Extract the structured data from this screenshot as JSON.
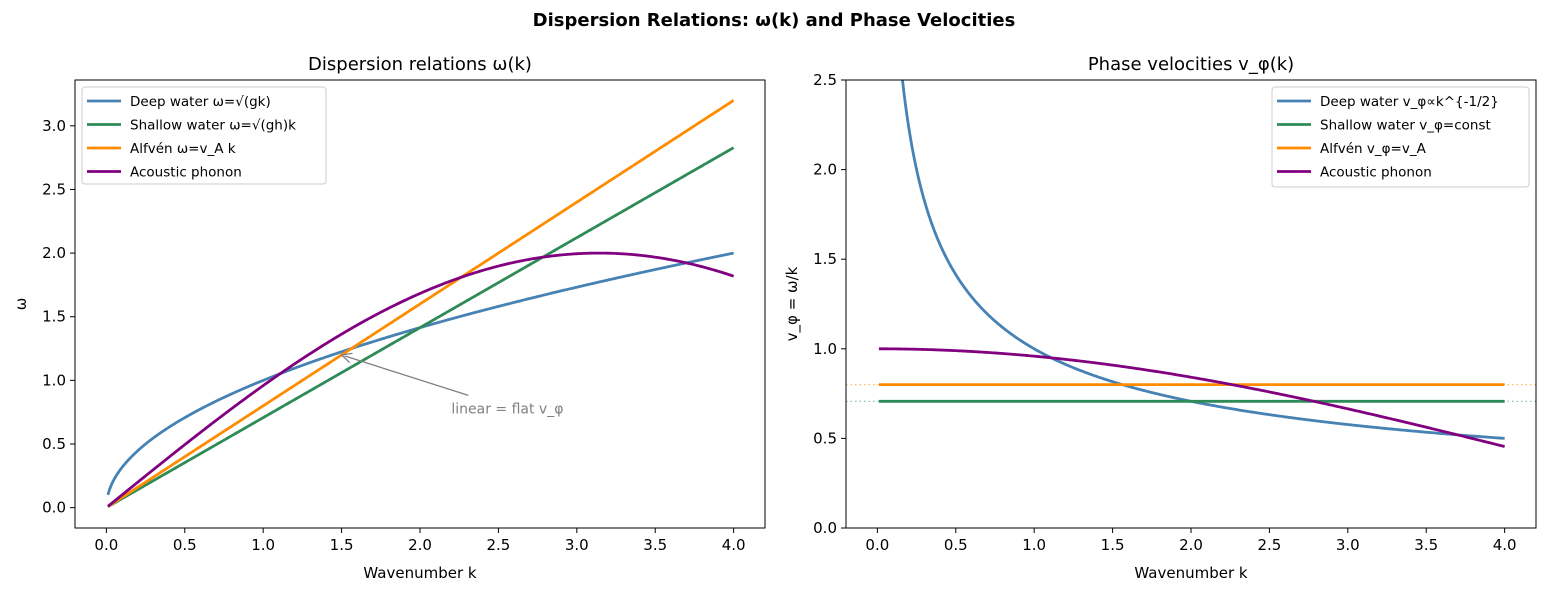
{
  "figure": {
    "suptitle": "Dispersion Relations: ω(k) and Phase Velocities"
  },
  "colors": {
    "deep": "#4682b4",
    "shallow": "#2e8b57",
    "alfven": "#ff8c00",
    "acoustic": "#800080",
    "annotation": "#808080"
  },
  "chart_data": [
    {
      "type": "line",
      "title": "Dispersion relations  ω(k)",
      "xlabel": "Wavenumber k",
      "ylabel": "ω",
      "xlim": [
        -0.2,
        4.2
      ],
      "ylim": [
        -0.16,
        3.36
      ],
      "xticks": [
        "0.0",
        "0.5",
        "1.0",
        "1.5",
        "2.0",
        "2.5",
        "3.0",
        "3.5",
        "4.0"
      ],
      "yticks": [
        "0.0",
        "0.5",
        "1.0",
        "1.5",
        "2.0",
        "2.5",
        "3.0"
      ],
      "legend_position": "upper-left",
      "series": [
        {
          "name": "Deep water  ω=√(gk)",
          "color_key": "deep",
          "formula": "sqrt(k)",
          "x_range": [
            0.01,
            4.0
          ]
        },
        {
          "name": "Shallow water  ω=√(gh)k",
          "color_key": "shallow",
          "formula": "0.7071*k",
          "x_range": [
            0.01,
            4.0
          ]
        },
        {
          "name": "Alfvén  ω=v_A k",
          "color_key": "alfven",
          "formula": "0.8*k",
          "x_range": [
            0.01,
            4.0
          ]
        },
        {
          "name": "Acoustic phonon",
          "color_key": "acoustic",
          "formula": "2*sin(k/2)",
          "x_range": [
            0.01,
            4.0
          ]
        }
      ],
      "annotation": {
        "text": "linear = flat v_φ",
        "point": [
          1.5,
          1.2
        ],
        "text_at": [
          2.2,
          0.78
        ]
      }
    },
    {
      "type": "line",
      "title": "Phase velocities  v_φ(k)",
      "xlabel": "Wavenumber k",
      "ylabel": "v_φ = ω/k",
      "xlim": [
        -0.2,
        4.2
      ],
      "ylim": [
        0.0,
        2.5
      ],
      "xticks": [
        "0.0",
        "0.5",
        "1.0",
        "1.5",
        "2.0",
        "2.5",
        "3.0",
        "3.5",
        "4.0"
      ],
      "yticks": [
        "0.0",
        "0.5",
        "1.0",
        "1.5",
        "2.0",
        "2.5"
      ],
      "legend_position": "upper-right",
      "reference_lines": [
        {
          "y": 0.8,
          "color_key": "alfven",
          "style": "dotted"
        },
        {
          "y": 0.7071,
          "color_key": "shallow",
          "style": "dotted"
        }
      ],
      "series": [
        {
          "name": "Deep water  v_φ∝k^{-1/2}",
          "color_key": "deep",
          "formula": "1/sqrt(k)",
          "x_range": [
            0.01,
            4.0
          ]
        },
        {
          "name": "Shallow water  v_φ=const",
          "color_key": "shallow",
          "formula": "0.7071",
          "x_range": [
            0.01,
            4.0
          ]
        },
        {
          "name": "Alfvén  v_φ=v_A",
          "color_key": "alfven",
          "formula": "0.8",
          "x_range": [
            0.01,
            4.0
          ]
        },
        {
          "name": "Acoustic phonon",
          "color_key": "acoustic",
          "formula": "2*sin(k/2)/k",
          "x_range": [
            0.01,
            4.0
          ]
        }
      ]
    }
  ]
}
